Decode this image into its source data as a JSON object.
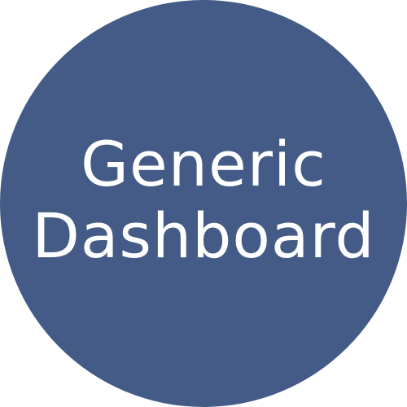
{
  "app_icon": {
    "background_color": "#435b86",
    "text_color": "#ffffff",
    "title_lines": [
      "Generic",
      "Dashboard"
    ]
  }
}
